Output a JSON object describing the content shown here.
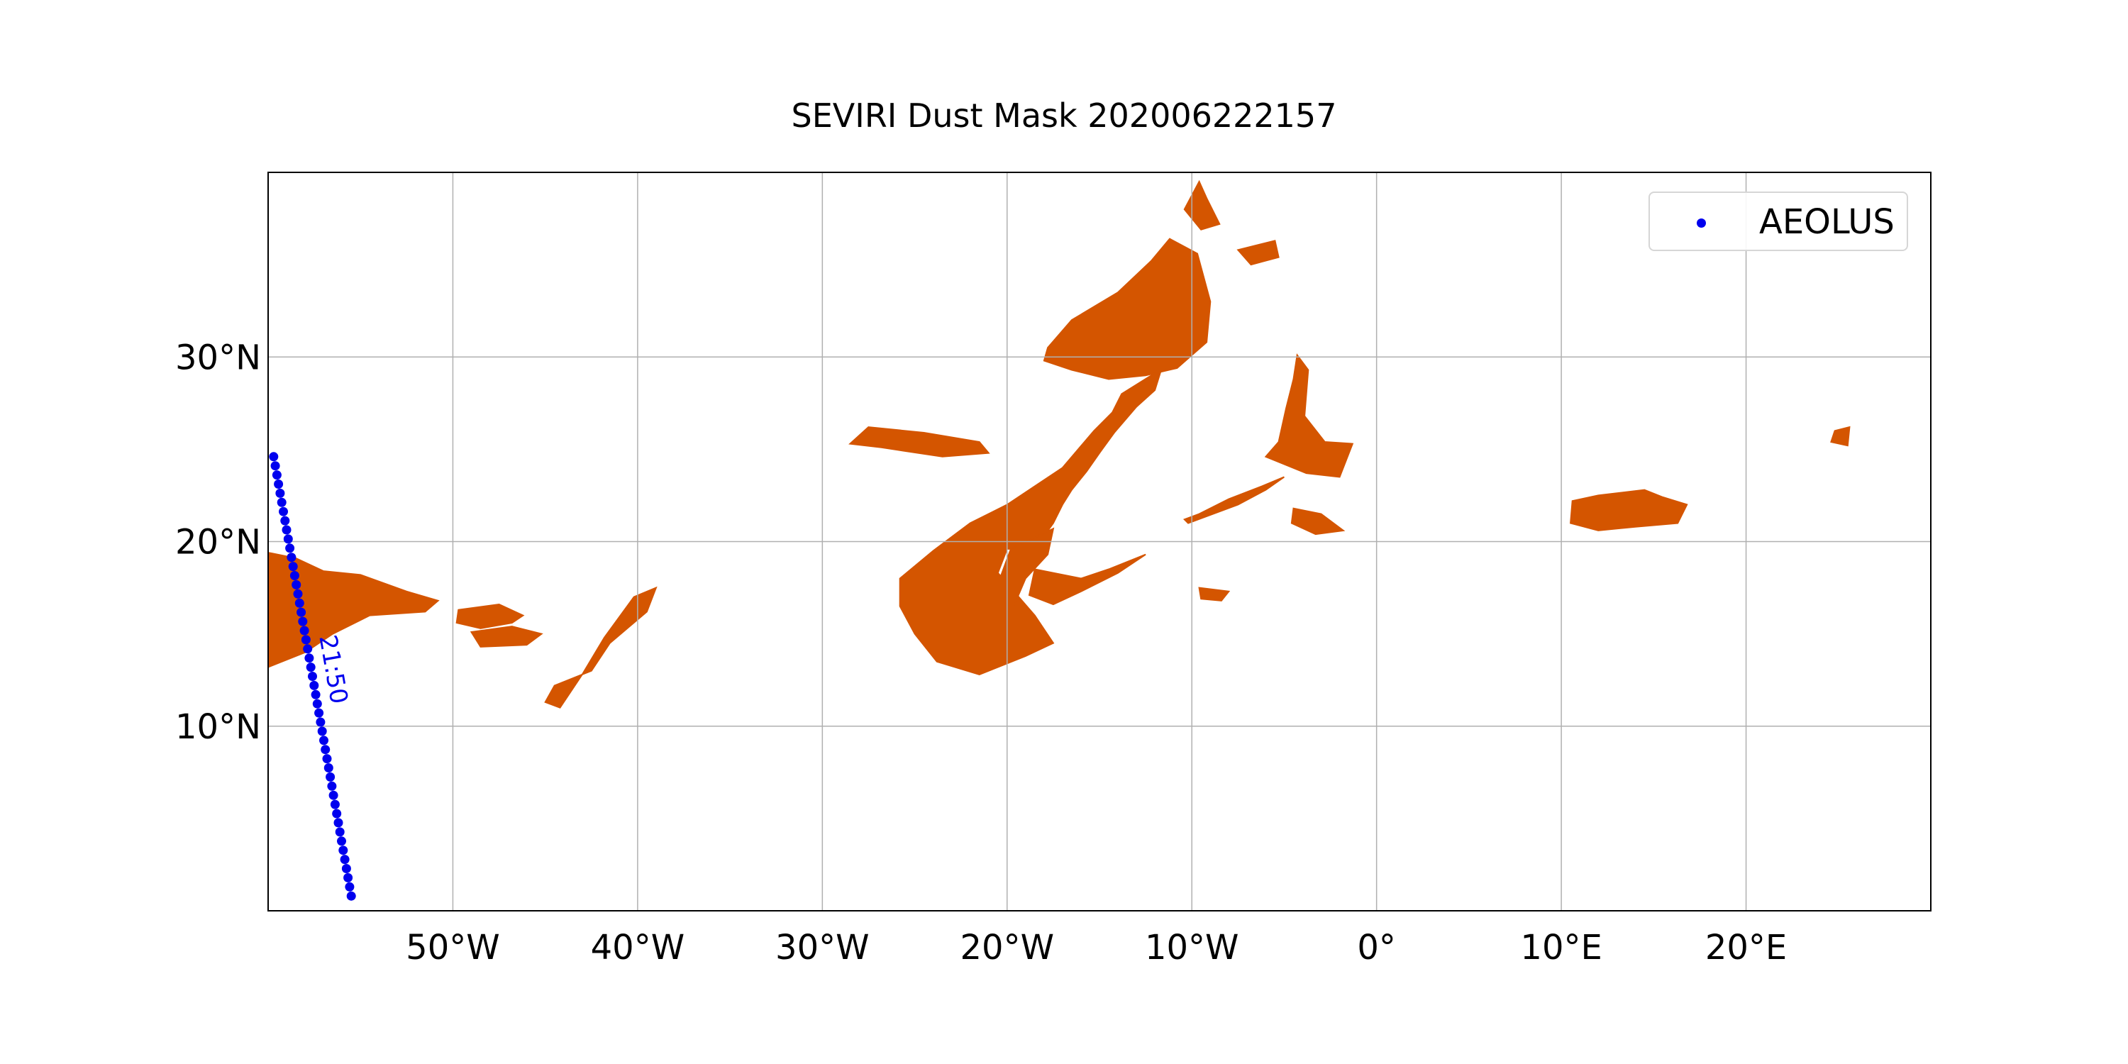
{
  "title": "SEVIRI Dust Mask 202006222157",
  "colors": {
    "dust": "#d45500",
    "track": "#0000ee",
    "grid": "#b0b0b0",
    "frame": "#000000"
  },
  "legend": {
    "label": "AEOLUS",
    "marker": "blue-dot"
  },
  "chart_data": {
    "type": "map",
    "xlim": [
      -60,
      30
    ],
    "ylim": [
      0,
      40
    ],
    "x_ticks": [
      {
        "value": -50,
        "label": "50°W"
      },
      {
        "value": -40,
        "label": "40°W"
      },
      {
        "value": -30,
        "label": "30°W"
      },
      {
        "value": -20,
        "label": "20°W"
      },
      {
        "value": -10,
        "label": "10°W"
      },
      {
        "value": 0,
        "label": "0°"
      },
      {
        "value": 10,
        "label": "10°E"
      },
      {
        "value": 20,
        "label": "20°E"
      }
    ],
    "y_ticks": [
      {
        "value": 10,
        "label": "10°N"
      },
      {
        "value": 20,
        "label": "20°N"
      },
      {
        "value": 30,
        "label": "30°N"
      }
    ],
    "grid": true,
    "legend_position": "top-right",
    "track": {
      "name": "AEOLUS",
      "start": {
        "lon": -59.7,
        "lat": 24.6
      },
      "end": {
        "lon": -55.5,
        "lat": 0.8
      },
      "n_points": 49,
      "time_label": {
        "text": "21:50",
        "lon": -56.9,
        "lat": 13.0
      }
    },
    "dust_regions": [
      {
        "region": "west-plume",
        "polygon": [
          [
            -60,
            19.4
          ],
          [
            -58.5,
            19.1
          ],
          [
            -57,
            18.4
          ],
          [
            -55,
            18.2
          ],
          [
            -52.5,
            17.3
          ],
          [
            -50.8,
            16.8
          ],
          [
            -51.5,
            16.2
          ],
          [
            -54.5,
            16.0
          ],
          [
            -56.5,
            15.0
          ],
          [
            -58,
            14.0
          ],
          [
            -60,
            13.2
          ]
        ]
      },
      {
        "region": "west-patch-1",
        "polygon": [
          [
            -49.7,
            16.3
          ],
          [
            -47.5,
            16.6
          ],
          [
            -46.2,
            16.0
          ],
          [
            -46.8,
            15.6
          ],
          [
            -48.5,
            15.3
          ],
          [
            -49.8,
            15.6
          ]
        ]
      },
      {
        "region": "west-patch-2",
        "polygon": [
          [
            -49.0,
            15.1
          ],
          [
            -46.8,
            15.4
          ],
          [
            -45.2,
            15.0
          ],
          [
            -46.0,
            14.4
          ],
          [
            -48.5,
            14.3
          ]
        ]
      },
      {
        "region": "west-patch-3",
        "polygon": [
          [
            -44.5,
            12.2
          ],
          [
            -42.5,
            13.0
          ],
          [
            -41.5,
            14.5
          ],
          [
            -39.5,
            16.2
          ],
          [
            -39.0,
            17.5
          ],
          [
            -40.2,
            17.0
          ],
          [
            -41.8,
            14.8
          ],
          [
            -43.0,
            12.8
          ],
          [
            -44.2,
            11.0
          ],
          [
            -45.0,
            11.3
          ]
        ]
      },
      {
        "region": "atlantic-streak",
        "polygon": [
          [
            -27.5,
            26.2
          ],
          [
            -24.5,
            25.9
          ],
          [
            -21.5,
            25.4
          ],
          [
            -21.0,
            24.8
          ],
          [
            -23.5,
            24.6
          ],
          [
            -26.8,
            25.1
          ],
          [
            -28.5,
            25.3
          ]
        ]
      },
      {
        "region": "central-plume",
        "polygon": [
          [
            -25.8,
            18.0
          ],
          [
            -24.0,
            19.5
          ],
          [
            -22.0,
            21.0
          ],
          [
            -20.0,
            22.0
          ],
          [
            -18.5,
            23.0
          ],
          [
            -17.0,
            24.0
          ],
          [
            -15.3,
            26.0
          ],
          [
            -14.3,
            27.0
          ],
          [
            -13.8,
            28.0
          ],
          [
            -12.2,
            29.0
          ],
          [
            -11.6,
            29.5
          ],
          [
            -12.0,
            28.2
          ],
          [
            -13.0,
            27.3
          ],
          [
            -14.2,
            25.9
          ],
          [
            -15.0,
            24.8
          ],
          [
            -15.7,
            23.8
          ],
          [
            -16.5,
            22.8
          ],
          [
            -17.0,
            22.0
          ],
          [
            -17.5,
            21.0
          ],
          [
            -18.5,
            19.6
          ],
          [
            -20.0,
            19.6
          ],
          [
            -20.5,
            18.3
          ],
          [
            -18.5,
            16.0
          ],
          [
            -17.5,
            14.5
          ],
          [
            -19.0,
            13.8
          ],
          [
            -21.5,
            12.8
          ],
          [
            -23.8,
            13.5
          ],
          [
            -25.0,
            15.0
          ],
          [
            -25.8,
            16.5
          ]
        ]
      },
      {
        "region": "central-arm-1",
        "polygon": [
          [
            -19.8,
            19.6
          ],
          [
            -17.5,
            20.7
          ],
          [
            -17.8,
            19.3
          ],
          [
            -19.0,
            18.0
          ],
          [
            -19.6,
            16.6
          ],
          [
            -20.5,
            17.7
          ]
        ]
      },
      {
        "region": "central-arm-2",
        "polygon": [
          [
            -18.5,
            18.5
          ],
          [
            -16.0,
            18.0
          ],
          [
            -14.5,
            18.5
          ],
          [
            -12.5,
            19.3
          ],
          [
            -14.0,
            18.3
          ],
          [
            -16.0,
            17.3
          ],
          [
            -17.5,
            16.6
          ],
          [
            -18.8,
            17.1
          ]
        ]
      },
      {
        "region": "north-plume",
        "polygon": [
          [
            -17.8,
            30.5
          ],
          [
            -16.5,
            32.0
          ],
          [
            -14.0,
            33.5
          ],
          [
            -12.2,
            35.2
          ],
          [
            -11.2,
            36.4
          ],
          [
            -9.7,
            35.6
          ],
          [
            -9.0,
            33.0
          ],
          [
            -9.2,
            30.8
          ],
          [
            -10.8,
            29.4
          ],
          [
            -12.5,
            29.0
          ],
          [
            -14.5,
            28.8
          ],
          [
            -16.5,
            29.3
          ],
          [
            -18.0,
            29.8
          ]
        ]
      },
      {
        "region": "north-fragment-1",
        "polygon": [
          [
            -10.4,
            38.0
          ],
          [
            -9.6,
            39.5
          ],
          [
            -9.2,
            38.6
          ],
          [
            -8.5,
            37.2
          ],
          [
            -9.5,
            36.9
          ]
        ]
      },
      {
        "region": "north-fragment-2",
        "polygon": [
          [
            -7.5,
            35.8
          ],
          [
            -5.5,
            36.3
          ],
          [
            -5.3,
            35.4
          ],
          [
            -6.8,
            35.0
          ]
        ]
      },
      {
        "region": "maghreb-band",
        "polygon": [
          [
            -10.2,
            21.0
          ],
          [
            -7.5,
            22.0
          ],
          [
            -6.0,
            22.8
          ],
          [
            -5.0,
            23.5
          ],
          [
            -6.2,
            23.0
          ],
          [
            -8.0,
            22.3
          ],
          [
            -9.6,
            21.5
          ],
          [
            -10.4,
            21.2
          ]
        ]
      },
      {
        "region": "maghreb-patch-1",
        "polygon": [
          [
            -4.3,
            30.1
          ],
          [
            -3.7,
            29.3
          ],
          [
            -3.9,
            26.8
          ],
          [
            -2.8,
            25.4
          ],
          [
            -1.3,
            25.3
          ],
          [
            -2.0,
            23.5
          ],
          [
            -3.8,
            23.7
          ],
          [
            -6.0,
            24.6
          ],
          [
            -5.3,
            25.4
          ],
          [
            -4.9,
            27.2
          ],
          [
            -4.5,
            28.8
          ]
        ]
      },
      {
        "region": "maghreb-patch-2",
        "polygon": [
          [
            -4.5,
            21.8
          ],
          [
            -3.0,
            21.5
          ],
          [
            -1.8,
            20.6
          ],
          [
            -3.3,
            20.4
          ],
          [
            -4.6,
            21.0
          ]
        ]
      },
      {
        "region": "sahel-patch",
        "polygon": [
          [
            -9.6,
            17.5
          ],
          [
            -8.0,
            17.3
          ],
          [
            -8.4,
            16.8
          ],
          [
            -9.5,
            16.9
          ]
        ]
      },
      {
        "region": "east-patch-1",
        "polygon": [
          [
            10.6,
            22.2
          ],
          [
            12.0,
            22.5
          ],
          [
            14.5,
            22.8
          ],
          [
            15.5,
            22.4
          ],
          [
            16.8,
            22.0
          ],
          [
            16.3,
            21.0
          ],
          [
            14.0,
            20.8
          ],
          [
            12.0,
            20.6
          ],
          [
            10.5,
            21.0
          ]
        ]
      },
      {
        "region": "east-patch-2",
        "polygon": [
          [
            24.8,
            26.0
          ],
          [
            25.6,
            26.2
          ],
          [
            25.5,
            25.2
          ],
          [
            24.6,
            25.4
          ]
        ]
      }
    ]
  }
}
